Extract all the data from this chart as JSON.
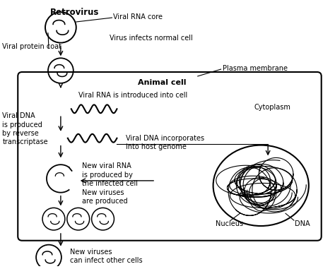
{
  "background_color": "#ffffff",
  "labels": {
    "retrovirus": {
      "text": "Retrovirus",
      "fontsize": 8.5,
      "bold": true
    },
    "viral_rna_core": {
      "text": "Viral RNA core",
      "fontsize": 7
    },
    "viral_protein_coat": {
      "text": "Viral protein coat",
      "fontsize": 7
    },
    "virus_infects": {
      "text": "Virus infects normal cell",
      "fontsize": 7
    },
    "plasma_membrane": {
      "text": "Plasma membrane",
      "fontsize": 7
    },
    "animal_cell": {
      "text": "Animal cell",
      "fontsize": 8,
      "bold": true
    },
    "viral_rna_intro": {
      "text": "Viral RNA is introduced into cell",
      "fontsize": 7
    },
    "cytoplasm": {
      "text": "Cytoplasm",
      "fontsize": 7
    },
    "viral_dna_prod": {
      "text": "Viral DNA\nis produced\nby reverse\ntranscriptase",
      "fontsize": 7
    },
    "viral_dna_inc": {
      "text": "Viral DNA incorporates\ninto host genome",
      "fontsize": 7
    },
    "new_viral_rna": {
      "text": "New viral RNA\nis produced by\nthe infected cell",
      "fontsize": 7
    },
    "new_viruses_prod": {
      "text": "New viruses\nare produced",
      "fontsize": 7
    },
    "nucleus": {
      "text": "Nucleus",
      "fontsize": 7
    },
    "dna": {
      "text": "DNA",
      "fontsize": 7
    },
    "new_viruses_inf": {
      "text": "New viruses\ncan infect other cells",
      "fontsize": 7
    }
  }
}
